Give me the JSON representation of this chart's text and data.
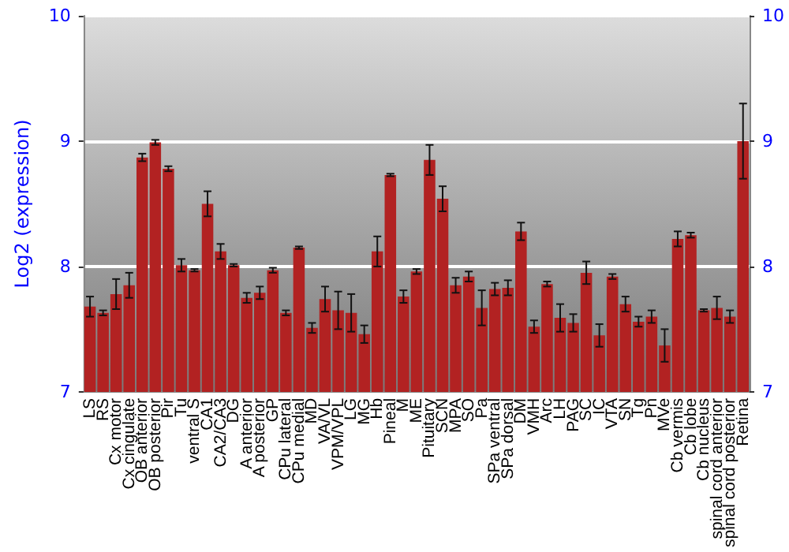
{
  "chart_data": {
    "type": "bar",
    "ylabel": "Log2 (expression)",
    "categories": [
      "LS",
      "RS",
      "Cx motor",
      "Cx cingulate",
      "OB anterior",
      "OB posterior",
      "Pir",
      "Tu",
      "ventral S",
      "CA1",
      "CA2/CA3",
      "DG",
      "A anterior",
      "A posterior",
      "GP",
      "CPu lateral",
      "CPu medial",
      "MD",
      "VA/VL",
      "VPM/VPL",
      "LG",
      "MG",
      "Hb",
      "Pineal",
      "M",
      "ME",
      "Pituitary",
      "SCN",
      "MPA",
      "SO",
      "Pa",
      "SPa ventral",
      "SPa dorsal",
      "DM",
      "VMH",
      "Arc",
      "LH",
      "PAG",
      "SC",
      "IC",
      "VTA",
      "SN",
      "Tg",
      "Pn",
      "MVe",
      "Cb vermis",
      "Cb lobe",
      "Cb nucleus",
      "spinal cord anterior",
      "spinal cord posterior",
      "Retina"
    ],
    "values": [
      7.68,
      7.63,
      7.78,
      7.85,
      8.87,
      8.99,
      8.78,
      8.01,
      7.97,
      8.5,
      8.12,
      8.01,
      7.75,
      7.79,
      7.97,
      7.63,
      8.15,
      7.51,
      7.74,
      7.65,
      7.63,
      7.46,
      8.12,
      8.73,
      7.76,
      7.96,
      8.85,
      8.54,
      7.85,
      7.92,
      7.67,
      7.82,
      7.83,
      8.28,
      7.52,
      7.86,
      7.59,
      7.55,
      7.95,
      7.45,
      7.92,
      7.7,
      7.56,
      7.6,
      7.37,
      8.22,
      8.25,
      7.65,
      7.67,
      7.6,
      9.0
    ],
    "errors": [
      0.08,
      0.02,
      0.12,
      0.1,
      0.03,
      0.02,
      0.02,
      0.05,
      0.01,
      0.1,
      0.06,
      0.01,
      0.04,
      0.05,
      0.02,
      0.02,
      0.01,
      0.04,
      0.1,
      0.15,
      0.15,
      0.07,
      0.12,
      0.01,
      0.05,
      0.02,
      0.12,
      0.1,
      0.06,
      0.04,
      0.14,
      0.05,
      0.06,
      0.07,
      0.05,
      0.02,
      0.11,
      0.07,
      0.09,
      0.09,
      0.02,
      0.06,
      0.04,
      0.05,
      0.13,
      0.06,
      0.02,
      0.01,
      0.09,
      0.05,
      0.3
    ],
    "color": "#b22222",
    "ylim": [
      7,
      10
    ],
    "yticks": [
      7,
      8,
      9,
      10
    ],
    "y2lim": [
      7,
      10
    ],
    "y2ticks": [
      7,
      8,
      9,
      10
    ],
    "grid": "y"
  }
}
